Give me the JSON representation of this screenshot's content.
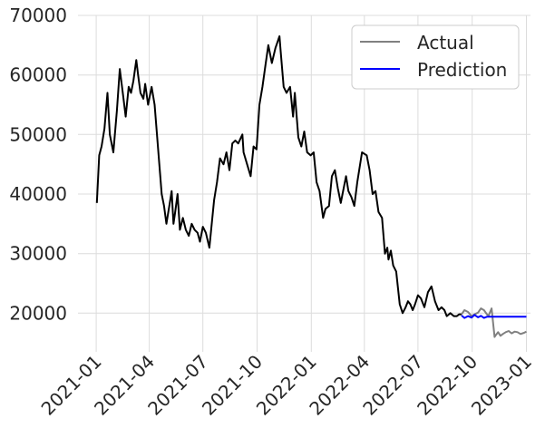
{
  "chart_data": {
    "type": "line",
    "title": "",
    "xlabel": "",
    "ylabel": "",
    "x_axis": {
      "type": "date",
      "range": [
        "2020-12-01",
        "2023-01-08"
      ],
      "ticks": [
        "2021-01",
        "2021-04",
        "2021-07",
        "2021-10",
        "2022-01",
        "2022-04",
        "2022-07",
        "2022-10",
        "2023-01"
      ]
    },
    "y_axis": {
      "range": [
        13500,
        70000
      ],
      "ticks": [
        20000,
        30000,
        40000,
        50000,
        60000,
        70000
      ],
      "tick_labels": [
        "20000",
        "30000",
        "40000",
        "50000",
        "60000",
        "70000"
      ]
    },
    "grid": true,
    "legend": {
      "placement": "top-right",
      "entries": [
        {
          "series": "Actual"
        },
        {
          "series": "Prediction"
        }
      ]
    },
    "series": [
      {
        "name": "Actual",
        "color": "#000000",
        "tail_color": "#808080",
        "tail_start": "2022-09-13",
        "x": [
          "2021-01-02",
          "2021-01-06",
          "2021-01-10",
          "2021-01-15",
          "2021-01-20",
          "2021-01-24",
          "2021-01-30",
          "2021-02-05",
          "2021-02-10",
          "2021-02-15",
          "2021-02-20",
          "2021-02-25",
          "2021-03-01",
          "2021-03-05",
          "2021-03-10",
          "2021-03-13",
          "2021-03-17",
          "2021-03-22",
          "2021-03-25",
          "2021-03-30",
          "2021-04-05",
          "2021-04-10",
          "2021-04-14",
          "2021-04-18",
          "2021-04-22",
          "2021-04-26",
          "2021-04-30",
          "2021-05-05",
          "2021-05-09",
          "2021-05-12",
          "2021-05-15",
          "2021-05-19",
          "2021-05-23",
          "2021-05-28",
          "2021-06-02",
          "2021-06-07",
          "2021-06-12",
          "2021-06-17",
          "2021-06-22",
          "2021-06-26",
          "2021-07-01",
          "2021-07-06",
          "2021-07-12",
          "2021-07-16",
          "2021-07-20",
          "2021-07-25",
          "2021-07-30",
          "2021-08-05",
          "2021-08-10",
          "2021-08-15",
          "2021-08-20",
          "2021-08-25",
          "2021-08-30",
          "2021-09-06",
          "2021-09-08",
          "2021-09-14",
          "2021-09-20",
          "2021-09-25",
          "2021-09-30",
          "2021-10-05",
          "2021-10-10",
          "2021-10-15",
          "2021-10-20",
          "2021-10-26",
          "2021-11-01",
          "2021-11-08",
          "2021-11-10",
          "2021-11-15",
          "2021-11-20",
          "2021-11-26",
          "2021-12-01",
          "2021-12-04",
          "2021-12-10",
          "2021-12-15",
          "2021-12-20",
          "2021-12-25",
          "2021-12-31",
          "2022-01-05",
          "2022-01-10",
          "2022-01-15",
          "2022-01-21",
          "2022-01-25",
          "2022-01-31",
          "2022-02-05",
          "2022-02-10",
          "2022-02-15",
          "2022-02-20",
          "2022-02-25",
          "2022-03-01",
          "2022-03-05",
          "2022-03-10",
          "2022-03-15",
          "2022-03-20",
          "2022-03-28",
          "2022-04-05",
          "2022-04-10",
          "2022-04-15",
          "2022-04-20",
          "2022-04-25",
          "2022-05-01",
          "2022-05-06",
          "2022-05-10",
          "2022-05-12",
          "2022-05-16",
          "2022-05-20",
          "2022-05-25",
          "2022-05-31",
          "2022-06-05",
          "2022-06-10",
          "2022-06-14",
          "2022-06-18",
          "2022-06-22",
          "2022-06-26",
          "2022-07-01",
          "2022-07-06",
          "2022-07-12",
          "2022-07-18",
          "2022-07-24",
          "2022-07-30",
          "2022-08-05",
          "2022-08-10",
          "2022-08-15",
          "2022-08-19",
          "2022-08-25",
          "2022-08-31",
          "2022-09-05",
          "2022-09-09",
          "2022-09-13",
          "2022-09-18",
          "2022-09-24",
          "2022-09-30",
          "2022-10-05",
          "2022-10-11",
          "2022-10-16",
          "2022-10-21",
          "2022-10-26",
          "2022-10-29",
          "2022-11-03",
          "2022-11-08",
          "2022-11-10",
          "2022-11-14",
          "2022-11-18",
          "2022-11-22",
          "2022-11-27",
          "2022-12-02",
          "2022-12-07",
          "2022-12-12",
          "2022-12-17",
          "2022-12-22",
          "2022-12-28",
          "2023-01-01"
        ],
        "values": [
          38500,
          46500,
          48000,
          51000,
          57000,
          50000,
          47000,
          54000,
          61000,
          57000,
          53000,
          58000,
          57000,
          59000,
          62500,
          60000,
          57000,
          56000,
          58500,
          55000,
          58000,
          55000,
          50000,
          45000,
          40000,
          38000,
          35000,
          38000,
          40500,
          35000,
          37000,
          40000,
          34000,
          36000,
          34000,
          33000,
          35000,
          34000,
          33500,
          32000,
          34500,
          33500,
          31000,
          35000,
          39000,
          42000,
          46000,
          45000,
          47000,
          44000,
          48500,
          49000,
          48500,
          50000,
          47000,
          45000,
          43000,
          48000,
          47500,
          55000,
          58000,
          61500,
          65000,
          62000,
          64500,
          66500,
          64000,
          58000,
          57000,
          58000,
          53000,
          57000,
          49500,
          48000,
          50500,
          47000,
          46500,
          47000,
          42000,
          40500,
          36000,
          37500,
          38000,
          43000,
          44000,
          41000,
          38500,
          41000,
          43000,
          40500,
          39500,
          38000,
          42000,
          47000,
          46500,
          44000,
          40000,
          40500,
          37000,
          36000,
          30000,
          31000,
          29000,
          30500,
          28000,
          27000,
          21500,
          20000,
          21000,
          22000,
          21500,
          20500,
          21500,
          23000,
          22500,
          21000,
          23500,
          24500,
          22000,
          20500,
          21000,
          20500,
          19500,
          20000,
          19500,
          19500,
          19800,
          19800,
          20500,
          20200,
          19500,
          19800,
          20100,
          20800,
          20500,
          19800,
          19600,
          20800,
          16000,
          16300,
          16800,
          16200,
          16500,
          16800,
          17000,
          16600,
          16900,
          16800,
          16500,
          16700,
          16900
        ]
      },
      {
        "name": "Prediction",
        "color": "#0000ff",
        "x": [
          "2022-09-13",
          "2022-09-18",
          "2022-09-24",
          "2022-09-30",
          "2022-10-05",
          "2022-10-11",
          "2022-10-16",
          "2022-10-21",
          "2022-10-26",
          "2022-11-08",
          "2022-11-22",
          "2022-12-07",
          "2022-12-22",
          "2023-01-01"
        ],
        "values": [
          19600,
          19200,
          19500,
          19250,
          19700,
          19300,
          19550,
          19200,
          19400,
          19400,
          19400,
          19400,
          19400,
          19400
        ]
      }
    ]
  }
}
